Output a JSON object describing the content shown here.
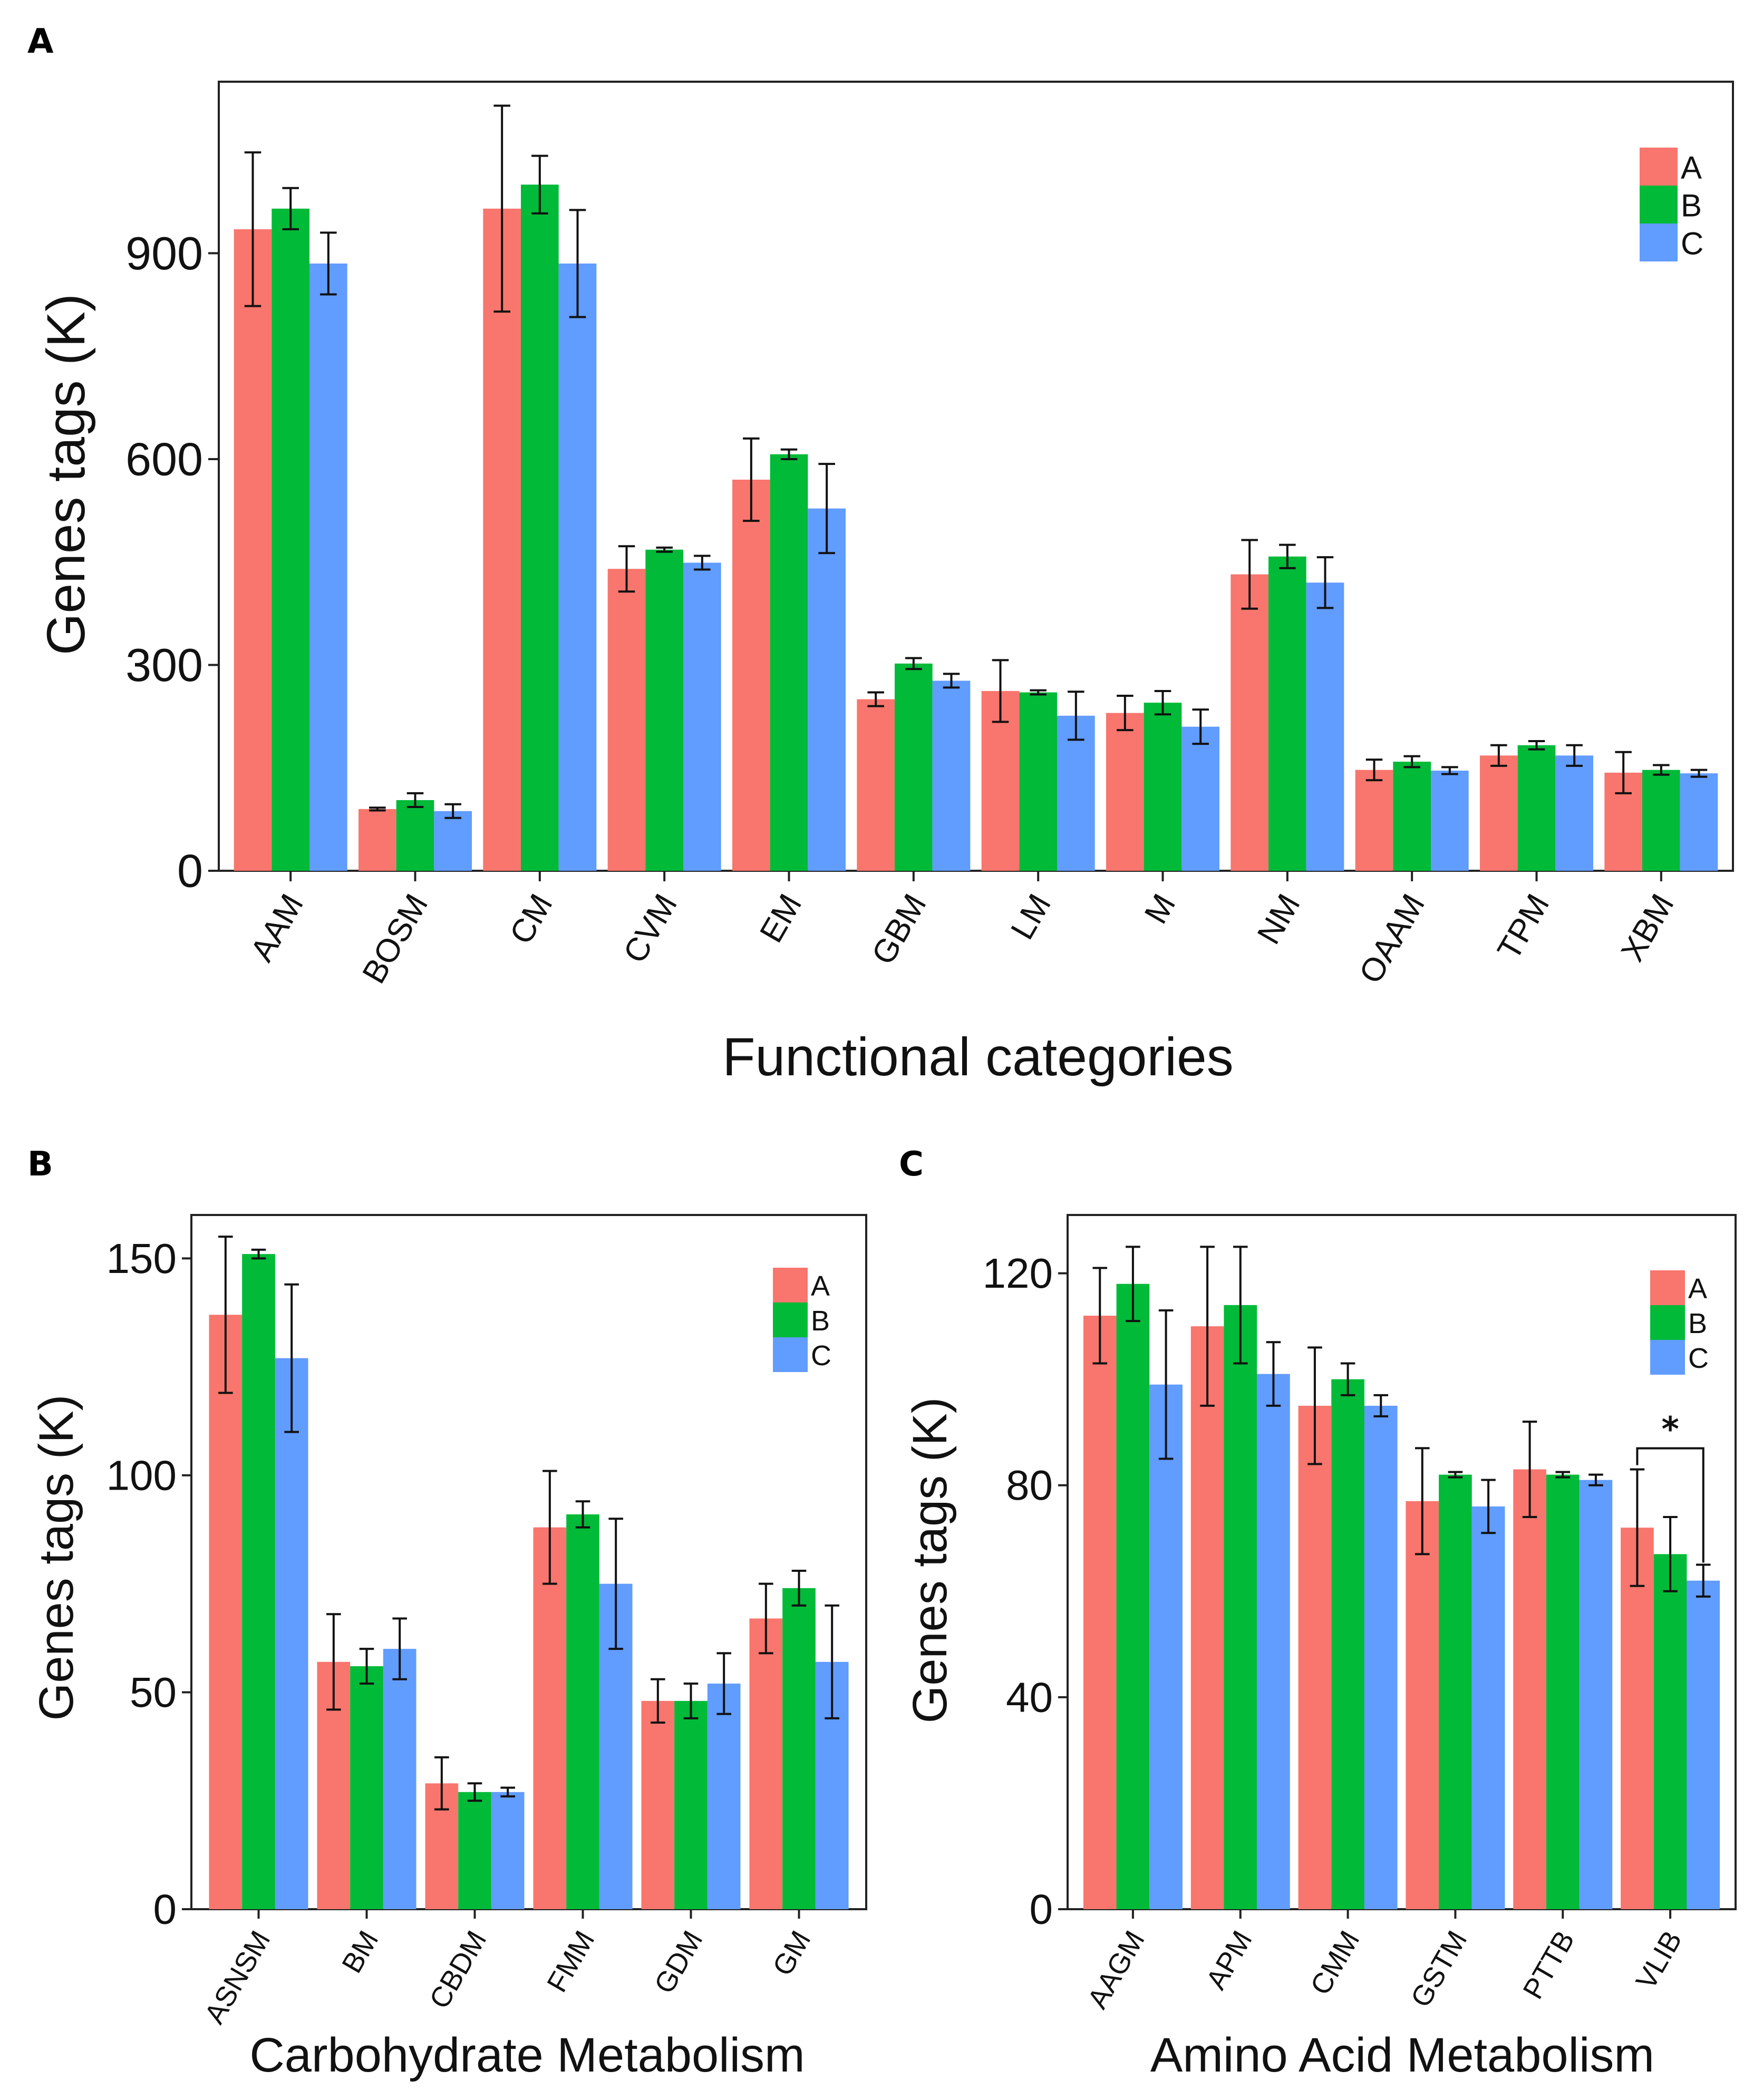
{
  "colors": {
    "A": "#F8766D",
    "B": "#00BA38",
    "C": "#619CFF"
  },
  "chart_data": [
    {
      "panel": "A",
      "type": "bar",
      "xlabel": "Functional categories",
      "ylabel": "Genes tags (K)",
      "ylim": [
        0,
        1150
      ],
      "yticks": [
        0,
        300,
        600,
        900
      ],
      "categories": [
        "AAM",
        "BOSM",
        "CM",
        "CVM",
        "EM",
        "GBM",
        "LM",
        "M",
        "NM",
        "OAAM",
        "TPM",
        "XBM"
      ],
      "series": [
        {
          "name": "A",
          "values": [
            935,
            90,
            965,
            440,
            570,
            250,
            262,
            230,
            432,
            147,
            168,
            143
          ],
          "errors": [
            112,
            2,
            150,
            33,
            60,
            10,
            45,
            25,
            50,
            15,
            15,
            30
          ]
        },
        {
          "name": "B",
          "values": [
            965,
            103,
            1000,
            468,
            607,
            302,
            260,
            245,
            458,
            159,
            183,
            147
          ],
          "errors": [
            30,
            10,
            42,
            3,
            7,
            8,
            3,
            17,
            17,
            8,
            6,
            7
          ]
        },
        {
          "name": "C",
          "values": [
            885,
            87,
            885,
            449,
            528,
            277,
            226,
            210,
            420,
            146,
            168,
            142
          ],
          "errors": [
            45,
            10,
            78,
            10,
            65,
            10,
            35,
            25,
            37,
            5,
            15,
            5
          ]
        }
      ],
      "legend": [
        "A",
        "B",
        "C"
      ]
    },
    {
      "panel": "B",
      "type": "bar",
      "xlabel": "Carbohydrate Metabolism",
      "ylabel": "Genes tags (K)",
      "ylim": [
        0,
        160
      ],
      "yticks": [
        0,
        50,
        100,
        150
      ],
      "categories": [
        "ASNSM",
        "BM",
        "CBDM",
        "FMM",
        "GDM",
        "GM"
      ],
      "series": [
        {
          "name": "A",
          "values": [
            137,
            57,
            29,
            88,
            48,
            67
          ],
          "errors": [
            18,
            11,
            6,
            13,
            5,
            8
          ]
        },
        {
          "name": "B",
          "values": [
            151,
            56,
            27,
            91,
            48,
            74
          ],
          "errors": [
            1,
            4,
            2,
            3,
            4,
            4
          ]
        },
        {
          "name": "C",
          "values": [
            127,
            60,
            27,
            75,
            52,
            57
          ],
          "errors": [
            17,
            7,
            1,
            15,
            7,
            13
          ]
        }
      ],
      "legend": [
        "A",
        "B",
        "C"
      ]
    },
    {
      "panel": "C",
      "type": "bar",
      "xlabel": "Amino Acid Metabolism",
      "ylabel": "Genes tags (K)",
      "ylim": [
        0,
        131
      ],
      "yticks": [
        0,
        40,
        80,
        120
      ],
      "categories": [
        "AAGM",
        "APM",
        "CMM",
        "GSTM",
        "PTTB",
        "VLIB"
      ],
      "series": [
        {
          "name": "A",
          "values": [
            112,
            110,
            95,
            77,
            83,
            72
          ],
          "errors": [
            9,
            15,
            11,
            10,
            9,
            11
          ]
        },
        {
          "name": "B",
          "values": [
            118,
            114,
            100,
            82,
            82,
            67
          ],
          "errors": [
            7,
            11,
            3,
            0.5,
            0.5,
            7
          ]
        },
        {
          "name": "C",
          "values": [
            99,
            101,
            95,
            76,
            81,
            62
          ],
          "errors": [
            14,
            6,
            2,
            5,
            1,
            3
          ]
        }
      ],
      "legend": [
        "A",
        "B",
        "C"
      ],
      "annotation": {
        "text": "*",
        "between": [
          "A",
          "C"
        ],
        "category": "VLIB"
      }
    }
  ]
}
